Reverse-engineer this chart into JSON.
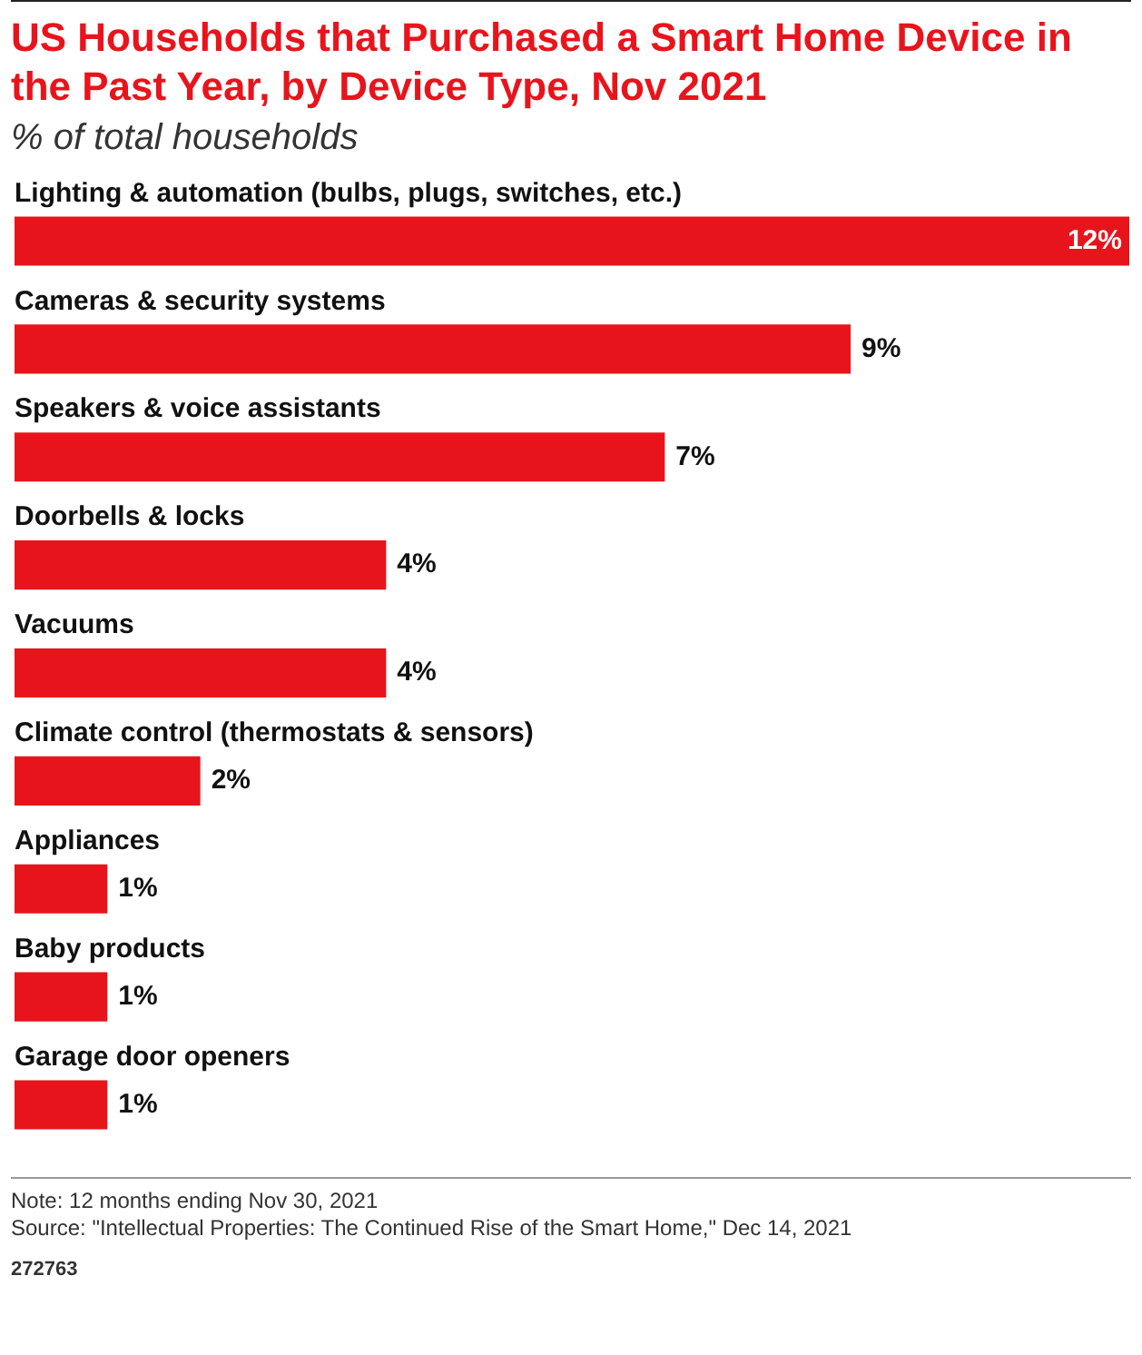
{
  "chart_data": {
    "type": "bar",
    "orientation": "horizontal",
    "title": "US Households that Purchased a Smart Home Device in the Past Year, by Device Type, Nov 2021",
    "subtitle": "% of total households",
    "categories": [
      "Lighting & automation (bulbs, plugs, switches, etc.)",
      "Cameras & security systems",
      "Speakers & voice assistants",
      "Doorbells & locks",
      "Vacuums",
      "Climate control (thermostats & sensors)",
      "Appliances",
      "Baby products",
      "Garage door openers"
    ],
    "values": [
      12,
      9,
      7,
      4,
      4,
      2,
      1,
      1,
      1
    ],
    "value_labels": [
      "12%",
      "9%",
      "7%",
      "4%",
      "4%",
      "2%",
      "1%",
      "1%",
      "1%"
    ],
    "color": "#e8141c",
    "xlim": [
      0,
      12
    ],
    "tick_labels": "y",
    "annotations": [
      "Note: 12 months ending Nov 30, 2021",
      "Source: \"Intellectual Properties: The Continued Rise of the Smart Home,\" Dec 14, 2021",
      "272763"
    ]
  }
}
